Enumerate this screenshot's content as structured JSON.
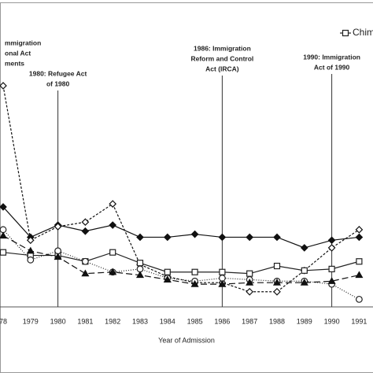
{
  "chart_data": {
    "type": "line",
    "x_label": "Year of Admission",
    "categories": [
      "78",
      "1979",
      "1980",
      "1981",
      "1982",
      "1983",
      "1984",
      "1985",
      "1986",
      "1987",
      "1988",
      "1989",
      "1990",
      "1991"
    ],
    "ylim": [
      0,
      100
    ],
    "series": [
      {
        "color": "#111111",
        "dash": "solid",
        "marker": "diamond-filled",
        "values": [
          33,
          23,
          27,
          25,
          27,
          23,
          23,
          24,
          23,
          23,
          23,
          19.5,
          22,
          23
        ]
      },
      {
        "color": "#111111",
        "dash": "short",
        "marker": "diamond-open",
        "values": [
          73,
          22,
          26.5,
          28,
          34,
          14,
          10,
          8,
          8,
          5,
          5,
          12,
          19.5,
          25.5
        ]
      },
      {
        "name": "Chim",
        "color": "#222222",
        "dash": "solid",
        "marker": "square-open",
        "values": [
          18,
          17,
          17,
          15,
          18,
          14.5,
          11.5,
          11.5,
          11.5,
          11,
          13.5,
          12,
          12.5,
          15
        ]
      },
      {
        "color": "#222222",
        "dash": "dotted",
        "marker": "circle-open",
        "values": [
          25.5,
          15.5,
          18.5,
          15,
          11.5,
          12.5,
          9.5,
          8.5,
          9.5,
          9,
          8.5,
          8.5,
          7.5,
          2.5
        ]
      },
      {
        "color": "#111111",
        "dash": "long",
        "marker": "triangle-filled",
        "values": [
          23.5,
          18.5,
          16.5,
          11,
          11.5,
          10.5,
          9,
          7.5,
          7.5,
          8,
          8,
          8,
          8.5,
          10.5
        ]
      }
    ],
    "annotations": [
      {
        "x": "78",
        "lines": [
          "mmigration",
          "onal Act",
          "ments"
        ]
      },
      {
        "x": "1980",
        "lines": [
          "1980: Refugee Act",
          "of 1980"
        ]
      },
      {
        "x": "1986",
        "lines": [
          "1986: Immigration",
          "Reform and Control",
          "Act (IRCA)"
        ]
      },
      {
        "x": "1990",
        "lines": [
          "1990: Immigration",
          "Act of 1990"
        ]
      }
    ]
  }
}
